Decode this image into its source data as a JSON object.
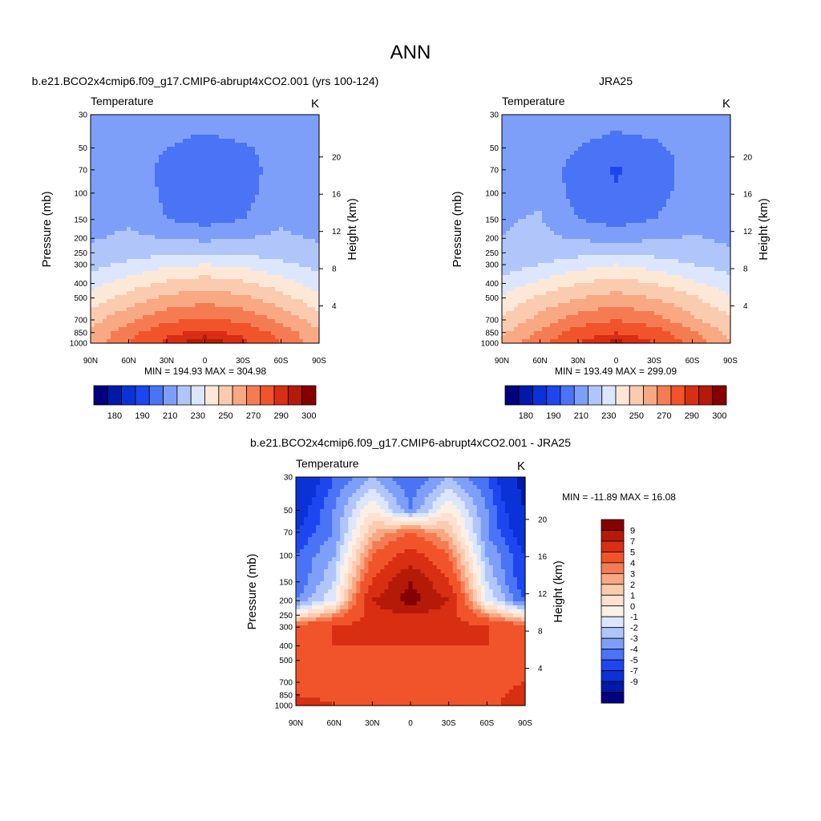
{
  "figure": {
    "title": "ANN"
  },
  "colors": {
    "abs": [
      "#00007f",
      "#0019a8",
      "#0a32d6",
      "#1e46f0",
      "#4a74f5",
      "#7e9ff9",
      "#b0c6fb",
      "#dce6fd",
      "#fde8d8",
      "#fbcbb0",
      "#f8a882",
      "#f57c52",
      "#f1542a",
      "#d82e12",
      "#b51a09",
      "#870000"
    ],
    "diff": [
      "#00007f",
      "#0019a8",
      "#0a32d6",
      "#1e46f0",
      "#4a74f5",
      "#7e9ff9",
      "#b0c6fb",
      "#dce6fd",
      "#fbf0e6",
      "#fde0cf",
      "#fbcbb0",
      "#f8a882",
      "#f57c52",
      "#f1542a",
      "#d82e12",
      "#b51a09",
      "#870000"
    ]
  },
  "chart_data": [
    {
      "type": "heatmap",
      "title": "b.e21.BCO2x4cmip6.f09_g17.CMIP6-abrupt4xCO2.001 (yrs 100-124)",
      "left_label": "Temperature",
      "right_label": "K",
      "xlabel": "",
      "ylabel": "Pressure (mb)",
      "y2label": "Height (km)",
      "x_ticks": [
        "90N",
        "60N",
        "30N",
        "0",
        "30S",
        "60S",
        "90S"
      ],
      "y_ticks": [
        "30",
        "50",
        "70",
        "100",
        "150",
        "200",
        "250",
        "300",
        "400",
        "500",
        "700",
        "850",
        "1000"
      ],
      "y2_ticks": [
        "20",
        "16",
        "12",
        "8",
        "4"
      ],
      "min_max": "MIN = 194.93  MAX = 304.98",
      "colorbar_labels": [
        "180",
        "190",
        "210",
        "230",
        "250",
        "270",
        "290",
        "300"
      ],
      "pressure_levels": [
        30,
        50,
        70,
        100,
        150,
        200,
        250,
        300,
        400,
        500,
        700,
        850,
        1000
      ],
      "latitudes": [
        90,
        60,
        30,
        0,
        -30,
        -60,
        -90
      ],
      "values": [
        [
          211,
          216,
          218,
          216,
          220,
          214,
          212
        ],
        [
          214,
          218,
          210,
          205,
          208,
          216,
          212
        ],
        [
          216,
          219,
          205,
          200,
          203,
          217,
          213
        ],
        [
          217,
          220,
          207,
          202,
          205,
          218,
          214
        ],
        [
          218,
          218,
          210,
          206,
          210,
          218,
          214
        ],
        [
          219,
          222,
          220,
          218,
          220,
          222,
          219
        ],
        [
          222,
          226,
          228,
          228,
          228,
          226,
          222
        ],
        [
          227,
          232,
          238,
          240,
          238,
          232,
          227
        ],
        [
          236,
          245,
          252,
          256,
          252,
          245,
          235
        ],
        [
          244,
          254,
          262,
          266,
          262,
          254,
          243
        ],
        [
          256,
          268,
          278,
          282,
          278,
          268,
          255
        ],
        [
          262,
          276,
          288,
          292,
          288,
          276,
          262
        ],
        [
          264,
          280,
          292,
          300,
          292,
          280,
          263
        ]
      ]
    },
    {
      "type": "heatmap",
      "title": "JRA25",
      "left_label": "Temperature",
      "right_label": "K",
      "xlabel": "",
      "ylabel": "Pressure (mb)",
      "y2label": "Height (km)",
      "x_ticks": [
        "90N",
        "60N",
        "30N",
        "0",
        "30S",
        "60S",
        "90S"
      ],
      "y_ticks": [
        "30",
        "50",
        "70",
        "100",
        "150",
        "200",
        "250",
        "300",
        "400",
        "500",
        "700",
        "850",
        "1000"
      ],
      "y2_ticks": [
        "20",
        "16",
        "12",
        "8",
        "4"
      ],
      "min_max": "MIN = 193.49  MAX = 299.09",
      "colorbar_labels": [
        "180",
        "190",
        "210",
        "230",
        "250",
        "270",
        "290",
        "300"
      ],
      "pressure_levels": [
        30,
        50,
        70,
        100,
        150,
        200,
        250,
        300,
        400,
        500,
        700,
        850,
        1000
      ],
      "latitudes": [
        90,
        60,
        30,
        0,
        -30,
        -60,
        -90
      ],
      "values": [
        [
          212,
          216,
          216,
          214,
          216,
          214,
          210
        ],
        [
          214,
          216,
          210,
          206,
          208,
          214,
          211
        ],
        [
          215,
          217,
          205,
          199,
          203,
          215,
          212
        ],
        [
          216,
          218,
          206,
          201,
          205,
          216,
          213
        ],
        [
          219,
          221,
          210,
          206,
          210,
          217,
          214
        ],
        [
          220,
          222,
          219,
          217,
          219,
          221,
          218
        ],
        [
          222,
          225,
          227,
          228,
          227,
          225,
          222
        ],
        [
          225,
          230,
          236,
          240,
          236,
          230,
          226
        ],
        [
          234,
          242,
          250,
          254,
          250,
          242,
          234
        ],
        [
          242,
          252,
          260,
          264,
          260,
          252,
          241
        ],
        [
          252,
          264,
          275,
          280,
          275,
          262,
          252
        ],
        [
          258,
          272,
          285,
          290,
          285,
          272,
          257
        ],
        [
          262,
          278,
          290,
          298,
          290,
          278,
          260
        ]
      ]
    },
    {
      "type": "heatmap",
      "title": "b.e21.BCO2x4cmip6.f09_g17.CMIP6-abrupt4xCO2.001 - JRA25",
      "left_label": "Temperature",
      "right_label": "K",
      "xlabel": "",
      "ylabel": "Pressure (mb)",
      "y2label": "Height (km)",
      "x_ticks": [
        "90N",
        "60N",
        "30N",
        "0",
        "30S",
        "60S",
        "90S"
      ],
      "y_ticks": [
        "30",
        "50",
        "70",
        "100",
        "150",
        "200",
        "250",
        "300",
        "400",
        "500",
        "700",
        "850",
        "1000"
      ],
      "y2_ticks": [
        "20",
        "16",
        "12",
        "8",
        "4"
      ],
      "min_max": "MIN = -11.89  MAX =  16.08",
      "colorbar_labels": [
        "9",
        "7",
        "5",
        "4",
        "3",
        "2",
        "1",
        "0",
        "-1",
        "-2",
        "-3",
        "-4",
        "-5",
        "-7",
        "-9"
      ],
      "pressure_levels": [
        30,
        50,
        70,
        100,
        150,
        200,
        250,
        300,
        400,
        500,
        700,
        850,
        1000
      ],
      "latitudes": [
        90,
        60,
        30,
        0,
        -30,
        -60,
        -90
      ],
      "values": [
        [
          -7,
          -4,
          -2,
          -4,
          -2,
          -4,
          -8
        ],
        [
          -6,
          -3,
          1,
          -3,
          1,
          -3,
          -7
        ],
        [
          -5,
          -3,
          3,
          5,
          3,
          -3,
          -6
        ],
        [
          -4,
          -2,
          5,
          8,
          5,
          -2,
          -5
        ],
        [
          -4,
          -1,
          7,
          11,
          7,
          -1,
          -5
        ],
        [
          -3,
          0,
          9,
          12,
          9,
          0,
          -4
        ],
        [
          1,
          4,
          8,
          9,
          8,
          4,
          1
        ],
        [
          6,
          7,
          8,
          8,
          8,
          7,
          6
        ],
        [
          6,
          7,
          7,
          7,
          7,
          7,
          6
        ],
        [
          5,
          6,
          6,
          6,
          6,
          6,
          5
        ],
        [
          6,
          6,
          6,
          6,
          6,
          6,
          7
        ],
        [
          7,
          6,
          6,
          6,
          6,
          6,
          8
        ],
        [
          9,
          7,
          6,
          6,
          6,
          6,
          9
        ]
      ]
    }
  ]
}
